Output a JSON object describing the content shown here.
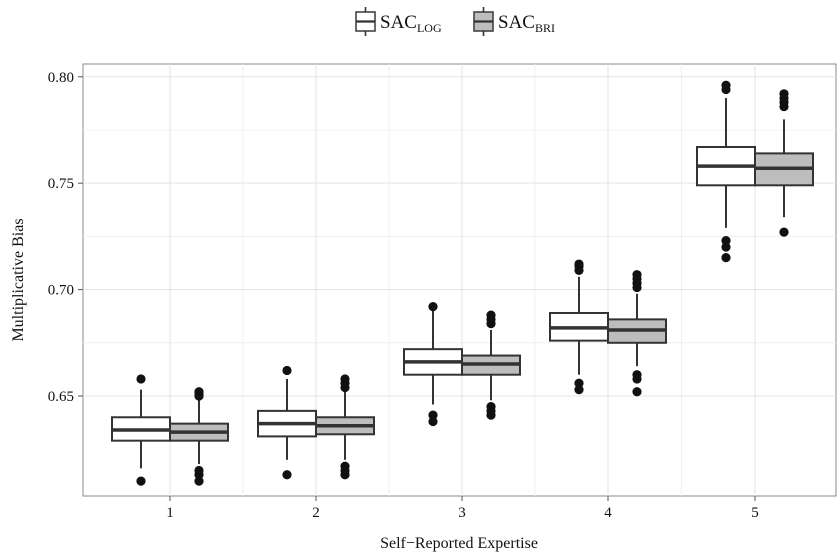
{
  "chart_data": {
    "type": "boxplot",
    "xlabel": "Self−Reported Expertise",
    "ylabel": "Multiplicative Bias",
    "categories": [
      "1",
      "2",
      "3",
      "4",
      "5"
    ],
    "ylim": [
      0.603,
      0.806
    ],
    "yticks": [
      0.65,
      0.7,
      0.75,
      0.8
    ],
    "ytick_labels": [
      "0.65",
      "0.70",
      "0.75",
      "0.80"
    ],
    "grid": true,
    "legend_position": "top",
    "legend": [
      {
        "main": "SAC",
        "sub": "LOG"
      },
      {
        "main": "SAC",
        "sub": "BRI"
      }
    ],
    "series": [
      {
        "fill": "#ffffff",
        "boxes": [
          {
            "min": 0.616,
            "q1": 0.629,
            "median": 0.634,
            "q3": 0.64,
            "max": 0.653,
            "outliers": [
              0.658,
              0.61
            ]
          },
          {
            "min": 0.62,
            "q1": 0.631,
            "median": 0.637,
            "q3": 0.643,
            "max": 0.658,
            "outliers": [
              0.662,
              0.613
            ]
          },
          {
            "min": 0.646,
            "q1": 0.66,
            "median": 0.666,
            "q3": 0.672,
            "max": 0.69,
            "outliers": [
              0.692,
              0.641,
              0.638
            ]
          },
          {
            "min": 0.66,
            "q1": 0.676,
            "median": 0.682,
            "q3": 0.689,
            "max": 0.706,
            "outliers": [
              0.712,
              0.711,
              0.709,
              0.656,
              0.653
            ]
          },
          {
            "min": 0.729,
            "q1": 0.749,
            "median": 0.758,
            "q3": 0.767,
            "max": 0.79,
            "outliers": [
              0.796,
              0.794,
              0.723,
              0.72,
              0.715
            ]
          }
        ]
      },
      {
        "fill": "#bdbdbd",
        "boxes": [
          {
            "min": 0.618,
            "q1": 0.629,
            "median": 0.633,
            "q3": 0.637,
            "max": 0.648,
            "outliers": [
              0.652,
              0.651,
              0.65,
              0.615,
              0.613,
              0.61
            ]
          },
          {
            "min": 0.62,
            "q1": 0.632,
            "median": 0.636,
            "q3": 0.64,
            "max": 0.652,
            "outliers": [
              0.658,
              0.656,
              0.654,
              0.617,
              0.615,
              0.613
            ]
          },
          {
            "min": 0.648,
            "q1": 0.66,
            "median": 0.665,
            "q3": 0.669,
            "max": 0.681,
            "outliers": [
              0.688,
              0.686,
              0.684,
              0.645,
              0.643,
              0.641
            ]
          },
          {
            "min": 0.664,
            "q1": 0.675,
            "median": 0.681,
            "q3": 0.686,
            "max": 0.698,
            "outliers": [
              0.707,
              0.705,
              0.703,
              0.701,
              0.66,
              0.658,
              0.652
            ]
          },
          {
            "min": 0.734,
            "q1": 0.749,
            "median": 0.757,
            "q3": 0.764,
            "max": 0.78,
            "outliers": [
              0.792,
              0.79,
              0.788,
              0.786,
              0.727
            ]
          }
        ]
      }
    ]
  }
}
